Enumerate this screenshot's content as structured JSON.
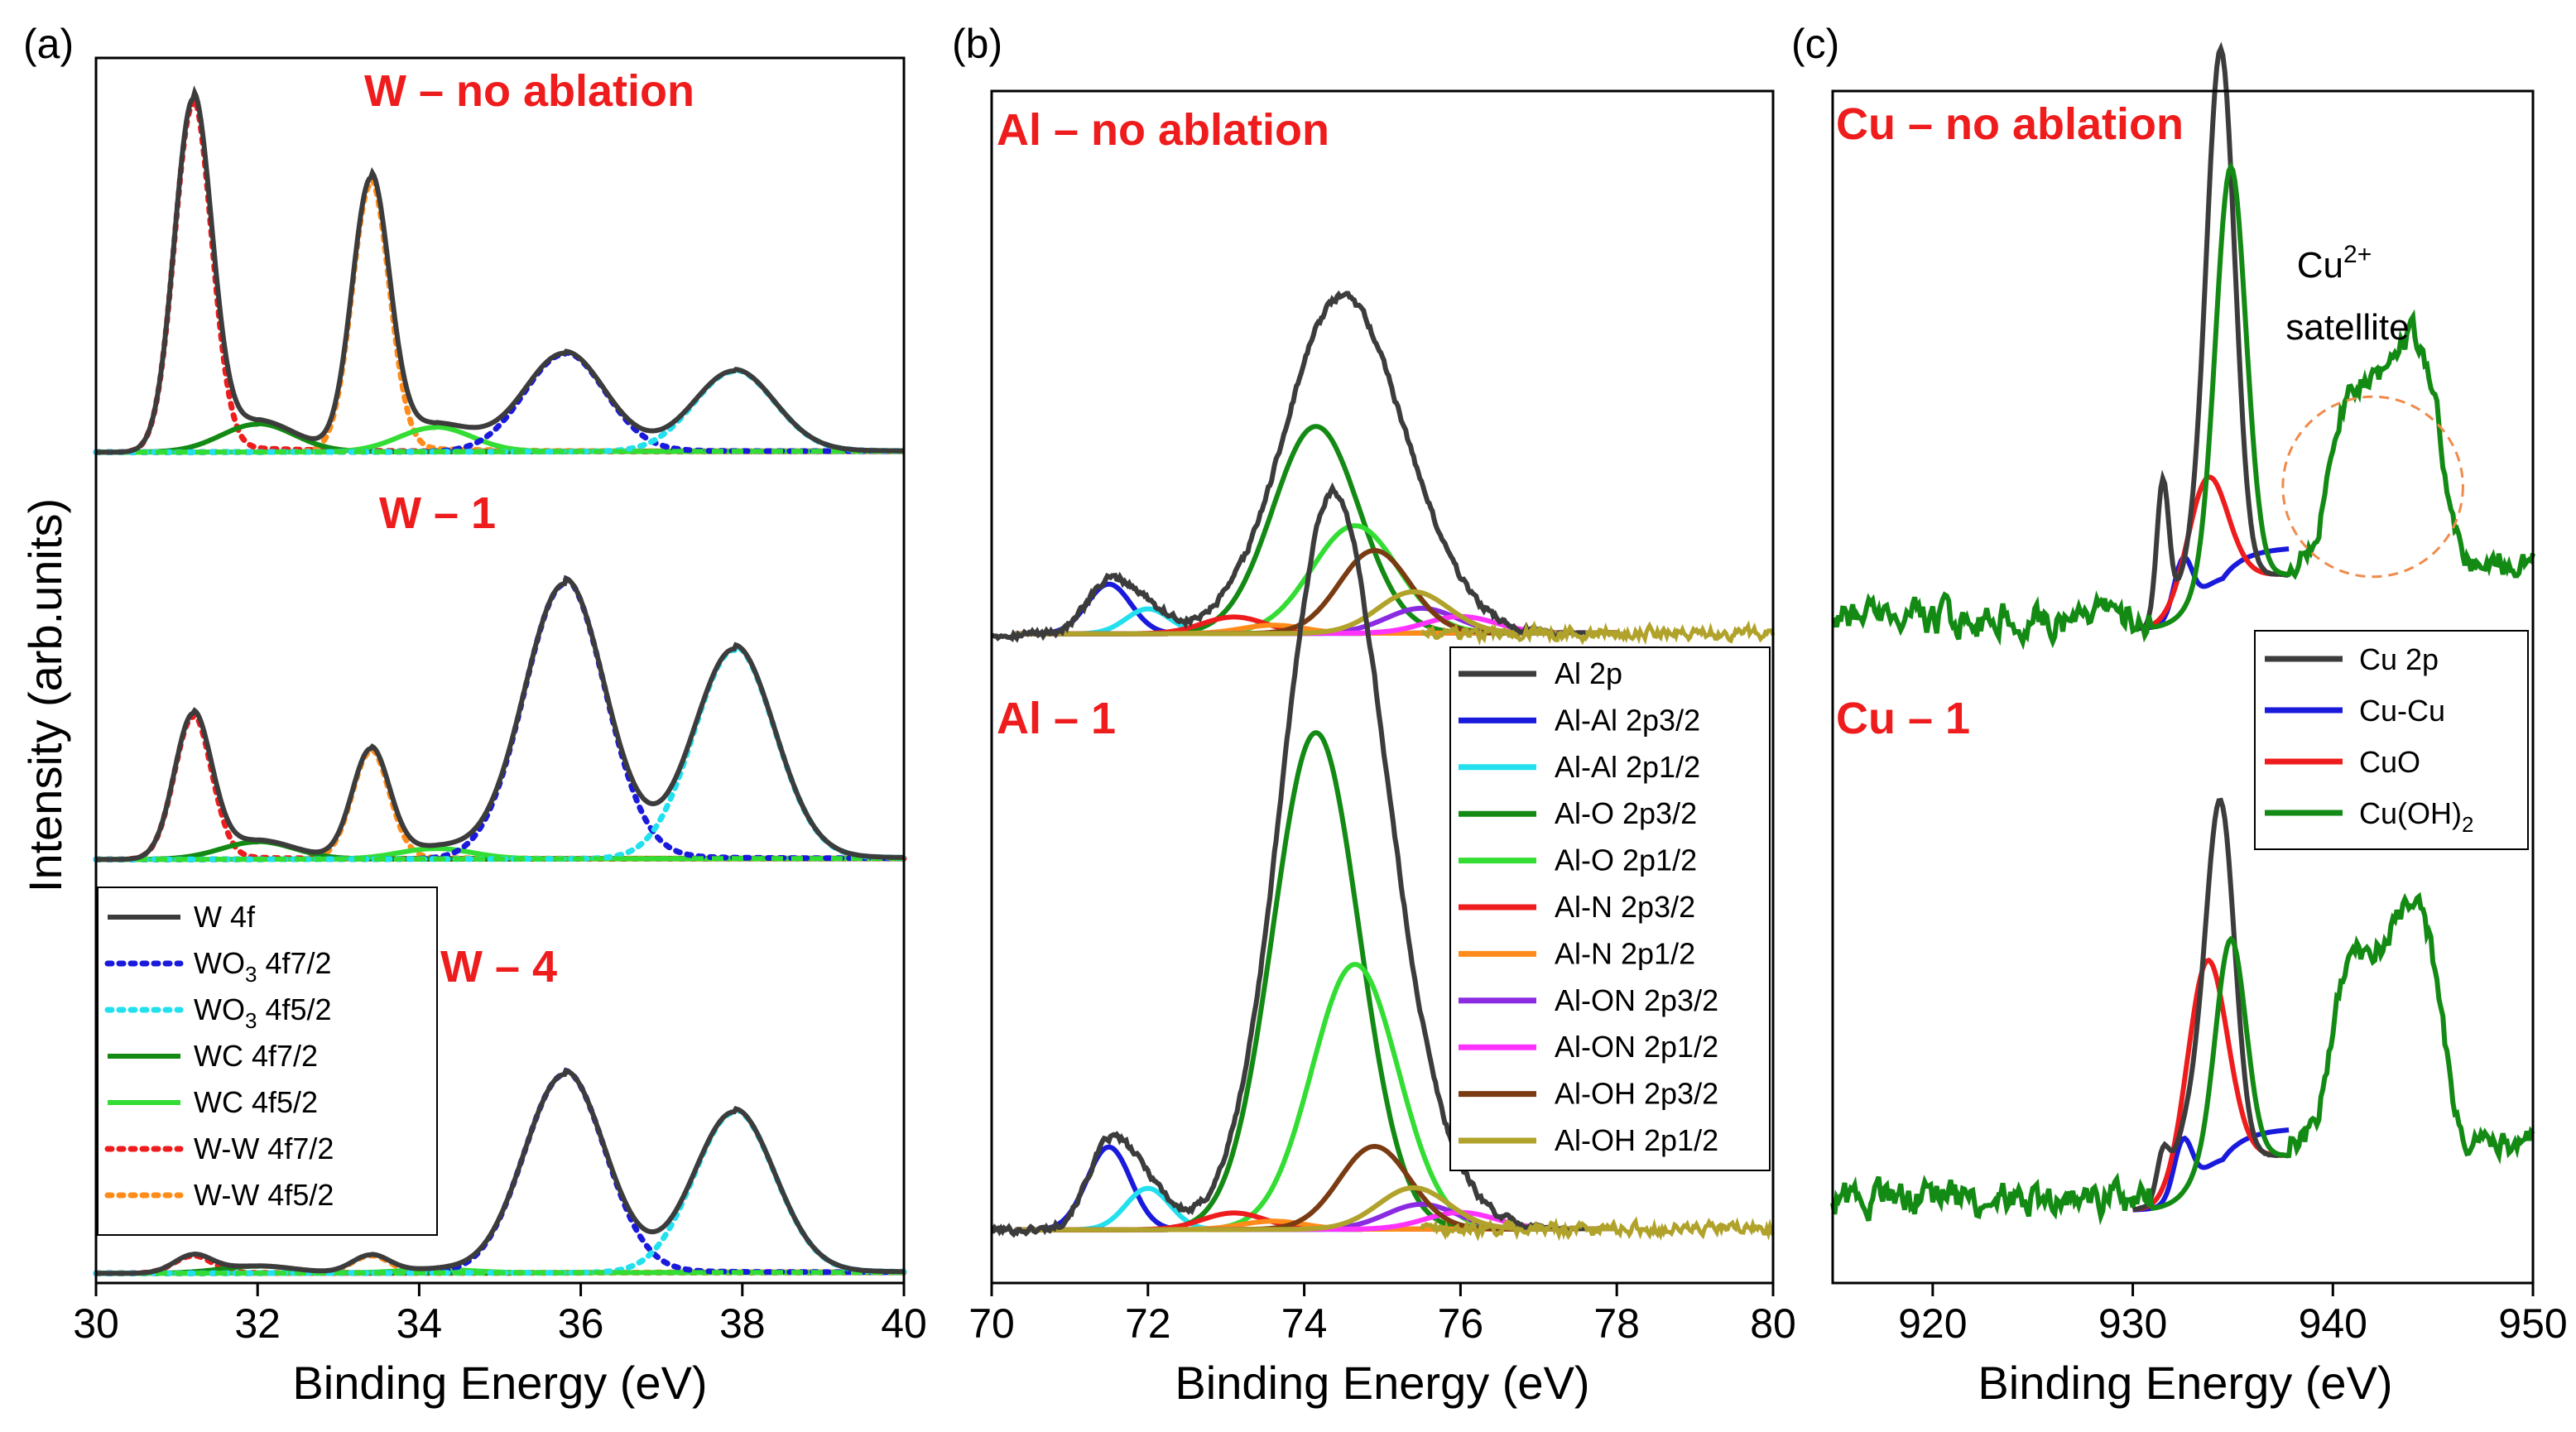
{
  "figure": {
    "ylabel": "Intensity (arb.units)",
    "colors": {
      "W4f": "#3c3c3c",
      "WO3_f72": "#1a1adc",
      "WO3_f52": "#22e0ee",
      "WC_f72": "#138a13",
      "WC_f52": "#33dd33",
      "WW_f72": "#ee1c1c",
      "WW_f52": "#ff8c1a",
      "Al2p": "#3c3c3c",
      "AlAl32": "#1a1adc",
      "AlAl12": "#22e0ee",
      "AlO32": "#138a13",
      "AlO12": "#33dd33",
      "AlN32": "#ee1c1c",
      "AlN12": "#ff8c1a",
      "AlON32": "#8a2be2",
      "AlON12": "#ff33ff",
      "AlOH32": "#7a3b12",
      "AlOH12": "#b0a22a",
      "Cu2p": "#3c3c3c",
      "CuCu": "#1a1adc",
      "CuO": "#ee1c1c",
      "CuOH2": "#138a13",
      "annotation_circle": "#f08a4b"
    }
  },
  "chart_data": [
    {
      "type": "line",
      "panel": "(a)",
      "xlabel": "Binding Energy (eV)",
      "ylabel": "Intensity (arb.units)",
      "xlim": [
        30,
        40
      ],
      "xticks": [
        "30",
        "32",
        "34",
        "36",
        "38",
        "40"
      ],
      "series_labels": [
        "W – no ablation",
        "W – 1",
        "W – 4"
      ],
      "legend": [
        {
          "label": "W 4f",
          "style": "solid",
          "color": "W4f"
        },
        {
          "label": "WO",
          "sub": "3",
          "suffix": " 4f7/2",
          "style": "dotted",
          "color": "WO3_f72"
        },
        {
          "label": "WO",
          "sub": "3",
          "suffix": " 4f5/2",
          "style": "dotted",
          "color": "WO3_f52"
        },
        {
          "label": "WC 4f7/2",
          "style": "solid",
          "color": "WC_f72"
        },
        {
          "label": "WC 4f5/2",
          "style": "solid",
          "color": "WC_f52"
        },
        {
          "label": "W-W 4f7/2",
          "style": "dotted",
          "color": "WW_f72"
        },
        {
          "label": "W-W 4f5/2",
          "style": "dotted",
          "color": "WW_f52"
        }
      ],
      "peak_positions_eV": {
        "W-W 4f7/2": 31.2,
        "W-W 4f5/2": 33.4,
        "WC 4f7/2": 32.0,
        "WC 4f5/2": 34.2,
        "WO3 4f7/2": 35.8,
        "WO3 4f5/2": 37.9
      },
      "spectra": [
        {
          "name": "W – no ablation",
          "relative_heights": {
            "W-W 4f7/2": 1.0,
            "W-W 4f5/2": 0.77,
            "WC 4f7/2": 0.08,
            "WC 4f5/2": 0.07,
            "WO3 4f7/2": 0.28,
            "WO3 4f5/2": 0.23
          }
        },
        {
          "name": "W – 1",
          "relative_heights": {
            "W-W 4f7/2": 0.41,
            "W-W 4f5/2": 0.31,
            "WC 4f7/2": 0.05,
            "WC 4f5/2": 0.03,
            "WO3 4f7/2": 0.79,
            "WO3 4f5/2": 0.6
          }
        },
        {
          "name": "W – 4",
          "relative_heights": {
            "W-W 4f7/2": 0.05,
            "W-W 4f5/2": 0.05,
            "WC 4f7/2": 0.02,
            "WC 4f5/2": 0.01,
            "WO3 4f7/2": 0.57,
            "WO3 4f5/2": 0.46
          }
        }
      ]
    },
    {
      "type": "line",
      "panel": "(b)",
      "xlabel": "Binding Energy (eV)",
      "xlim": [
        70,
        80
      ],
      "xticks": [
        "70",
        "72",
        "74",
        "76",
        "78",
        "80"
      ],
      "series_labels": [
        "Al – no ablation",
        "Al – 1"
      ],
      "legend": [
        {
          "label": "Al 2p",
          "color": "Al2p"
        },
        {
          "label": "Al-Al 2p3/2",
          "color": "AlAl32"
        },
        {
          "label": "Al-Al 2p1/2",
          "color": "AlAl12"
        },
        {
          "label": "Al-O 2p3/2",
          "color": "AlO32"
        },
        {
          "label": "Al-O 2p1/2",
          "color": "AlO12"
        },
        {
          "label": "Al-N 2p3/2",
          "color": "AlN32"
        },
        {
          "label": "Al-N 2p1/2",
          "color": "AlN12"
        },
        {
          "label": "Al-ON 2p3/2",
          "color": "AlON32"
        },
        {
          "label": "Al-ON 2p1/2",
          "color": "AlON12"
        },
        {
          "label": "Al-OH 2p3/2",
          "color": "AlOH32"
        },
        {
          "label": "Al-OH 2p1/2",
          "color": "AlOH12"
        }
      ],
      "peak_positions_eV": {
        "Al-Al 2p3/2": 71.5,
        "Al-Al 2p1/2": 72.0,
        "Al-O 2p3/2": 74.15,
        "Al-O 2p1/2": 74.65,
        "Al-N 2p3/2": 73.1,
        "Al-N 2p1/2": 73.6,
        "Al-ON 2p3/2": 75.5,
        "Al-ON 2p1/2": 76.0,
        "Al-OH 2p3/2": 74.9,
        "Al-OH 2p1/2": 75.4
      },
      "spectra": [
        {
          "name": "Al – no ablation",
          "relative_heights": {
            "Al-Al 2p3/2": 0.06,
            "Al-Al 2p1/2": 0.03,
            "Al-O 2p3/2": 0.25,
            "Al-O 2p1/2": 0.13,
            "Al-N 2p3/2": 0.02,
            "Al-N 2p1/2": 0.01,
            "Al-ON 2p3/2": 0.03,
            "Al-ON 2p1/2": 0.02,
            "Al-OH 2p3/2": 0.1,
            "Al-OH 2p1/2": 0.05
          }
        },
        {
          "name": "Al – 1",
          "relative_heights": {
            "Al-Al 2p3/2": 0.1,
            "Al-Al 2p1/2": 0.05,
            "Al-O 2p3/2": 0.6,
            "Al-O 2p1/2": 0.32,
            "Al-N 2p3/2": 0.02,
            "Al-N 2p1/2": 0.01,
            "Al-ON 2p3/2": 0.03,
            "Al-ON 2p1/2": 0.02,
            "Al-OH 2p3/2": 0.1,
            "Al-OH 2p1/2": 0.05
          }
        }
      ]
    },
    {
      "type": "line",
      "panel": "(c)",
      "xlabel": "Binding Energy (eV)",
      "xlim": [
        915,
        950
      ],
      "xticks": [
        "920",
        "930",
        "940",
        "950"
      ],
      "series_labels": [
        "Cu – no ablation",
        "Cu – 1"
      ],
      "annotation": {
        "main": "Cu",
        "sup": "2+",
        "line2": "satellite",
        "circle_center_eV": 942,
        "circle_radius_eV": 4.5
      },
      "legend": [
        {
          "label": "Cu 2p",
          "color": "Cu2p"
        },
        {
          "label": "Cu-Cu",
          "color": "CuCu"
        },
        {
          "label": "CuO",
          "color": "CuO"
        },
        {
          "label": "Cu(OH)",
          "sub": "2",
          "color": "CuOH2"
        }
      ],
      "peak_positions_eV": {
        "Cu-Cu": 932.5,
        "CuO": 933.7,
        "Cu(OH)2": 934.9,
        "satellite": [
          940.5,
          944.0
        ]
      },
      "spectra": [
        {
          "name": "Cu – no ablation",
          "relative_heights": {
            "Cu-Cu": 0.1,
            "CuO": 0.2,
            "Cu(OH)2": 0.75,
            "Cu2p_max": 0.95,
            "satellite": 0.42
          }
        },
        {
          "name": "Cu – 1",
          "relative_heights": {
            "Cu-Cu": 0.1,
            "CuO": 0.38,
            "Cu(OH)2": 0.4,
            "Cu2p_max": 0.62,
            "satellite": 0.45
          }
        }
      ]
    }
  ]
}
